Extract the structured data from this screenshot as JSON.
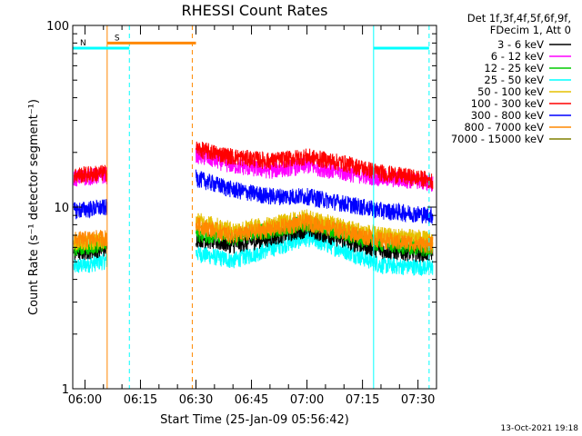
{
  "chart_data": {
    "type": "line",
    "title": "RHESSI Count Rates",
    "xlabel": "Start Time (25-Jan-09 05:56:42)",
    "ylabel": "Count Rate (s⁻¹ detector segment⁻¹)",
    "yscale": "log",
    "ylim": [
      1,
      100
    ],
    "xlim": [
      "05:56:42",
      "07:35:00"
    ],
    "x_tick_labels": [
      "06:00",
      "06:15",
      "06:30",
      "06:45",
      "07:00",
      "07:15",
      "07:30"
    ],
    "y_tick_labels": [
      "1",
      "10",
      "100"
    ],
    "legend_header": [
      "Det 1f,3f,4f,5f,6f,9f,",
      "FDecim 1, Att 0"
    ],
    "legend_position": "right",
    "gaps": [
      {
        "start": "06:06",
        "end": "06:30"
      }
    ],
    "series": [
      {
        "name": "3 - 6 keV",
        "color": "#000000",
        "values": [
          [
            "05:57",
            5.6
          ],
          [
            "06:06",
            6.0
          ],
          [
            "06:30",
            6.8
          ],
          [
            "06:40",
            6.2
          ],
          [
            "06:50",
            6.8
          ],
          [
            "07:00",
            7.6
          ],
          [
            "07:10",
            6.6
          ],
          [
            "07:20",
            5.8
          ],
          [
            "07:30",
            5.6
          ],
          [
            "07:34",
            5.6
          ]
        ]
      },
      {
        "name": "6 - 12 keV",
        "color": "#ff00ff",
        "values": [
          [
            "05:57",
            14.5
          ],
          [
            "06:06",
            15.0
          ],
          [
            "06:30",
            19.5
          ],
          [
            "06:40",
            17.0
          ],
          [
            "06:50",
            16.0
          ],
          [
            "07:00",
            17.0
          ],
          [
            "07:10",
            15.5
          ],
          [
            "07:20",
            14.5
          ],
          [
            "07:30",
            14.0
          ],
          [
            "07:34",
            13.5
          ]
        ]
      },
      {
        "name": "12 - 25 keV",
        "color": "#00cc00",
        "values": [
          [
            "05:57",
            6.0
          ],
          [
            "06:06",
            6.3
          ],
          [
            "06:30",
            7.2
          ],
          [
            "06:40",
            6.8
          ],
          [
            "06:50",
            7.5
          ],
          [
            "07:00",
            8.2
          ],
          [
            "07:10",
            7.2
          ],
          [
            "07:20",
            6.3
          ],
          [
            "07:30",
            6.0
          ],
          [
            "07:34",
            6.0
          ]
        ]
      },
      {
        "name": "25 - 50 keV",
        "color": "#00ffff",
        "values": [
          [
            "05:57",
            4.7
          ],
          [
            "06:06",
            5.1
          ],
          [
            "06:30",
            5.6
          ],
          [
            "06:40",
            5.1
          ],
          [
            "06:50",
            5.9
          ],
          [
            "07:00",
            6.8
          ],
          [
            "07:10",
            5.8
          ],
          [
            "07:20",
            4.8
          ],
          [
            "07:30",
            4.7
          ],
          [
            "07:34",
            4.7
          ]
        ]
      },
      {
        "name": "50 - 100 keV",
        "color": "#e6c000",
        "values": [
          [
            "05:57",
            6.4
          ],
          [
            "06:06",
            6.6
          ],
          [
            "06:30",
            8.5
          ],
          [
            "06:40",
            7.5
          ],
          [
            "06:50",
            8.0
          ],
          [
            "07:00",
            8.8
          ],
          [
            "07:10",
            7.8
          ],
          [
            "07:20",
            7.0
          ],
          [
            "07:30",
            6.8
          ],
          [
            "07:34",
            6.6
          ]
        ]
      },
      {
        "name": "100 - 300 keV",
        "color": "#ff0000",
        "values": [
          [
            "05:57",
            15.0
          ],
          [
            "06:06",
            15.5
          ],
          [
            "06:30",
            21.0
          ],
          [
            "06:40",
            19.0
          ],
          [
            "06:50",
            18.0
          ],
          [
            "07:00",
            19.0
          ],
          [
            "07:10",
            17.5
          ],
          [
            "07:20",
            15.5
          ],
          [
            "07:30",
            14.5
          ],
          [
            "07:34",
            14.0
          ]
        ]
      },
      {
        "name": "300 - 800 keV",
        "color": "#0000ff",
        "values": [
          [
            "05:57",
            9.6
          ],
          [
            "06:06",
            10.0
          ],
          [
            "06:30",
            14.5
          ],
          [
            "06:40",
            12.5
          ],
          [
            "06:50",
            11.5
          ],
          [
            "07:00",
            11.5
          ],
          [
            "07:10",
            10.5
          ],
          [
            "07:20",
            9.6
          ],
          [
            "07:30",
            9.2
          ],
          [
            "07:34",
            9.0
          ]
        ]
      },
      {
        "name": "800 - 7000 keV",
        "color": "#ff8800",
        "values": [
          [
            "05:57",
            6.6
          ],
          [
            "06:06",
            6.8
          ],
          [
            "06:30",
            8.0
          ],
          [
            "06:40",
            7.0
          ],
          [
            "06:50",
            7.6
          ],
          [
            "07:00",
            8.3
          ],
          [
            "07:10",
            7.4
          ],
          [
            "07:20",
            6.6
          ],
          [
            "07:30",
            6.3
          ],
          [
            "07:34",
            6.2
          ]
        ]
      },
      {
        "name": "7000 - 15000 keV",
        "color": "#808000",
        "values": []
      }
    ],
    "annotations": [
      {
        "label": "S",
        "color": "#ff8800",
        "y": 80,
        "x_start": "06:06",
        "x_end": "06:30"
      },
      {
        "label": "N",
        "color": "#00ffff",
        "y": 75,
        "x_start": "05:56:42",
        "x_end": "06:12"
      },
      {
        "label": "",
        "color": "#00ffff",
        "y": 75,
        "x_start": "07:18",
        "x_end": "07:33"
      }
    ],
    "vertical_markers": [
      {
        "x": "06:06",
        "color": "#ff8800",
        "style": "solid"
      },
      {
        "x": "06:12",
        "color": "#00ffff",
        "style": "dashed"
      },
      {
        "x": "06:29",
        "color": "#ff8800",
        "style": "dashed"
      },
      {
        "x": "07:18",
        "color": "#00ffff",
        "style": "solid"
      },
      {
        "x": "07:33",
        "color": "#00ffff",
        "style": "dashed"
      }
    ],
    "footer": "13-Oct-2021 19:18"
  }
}
